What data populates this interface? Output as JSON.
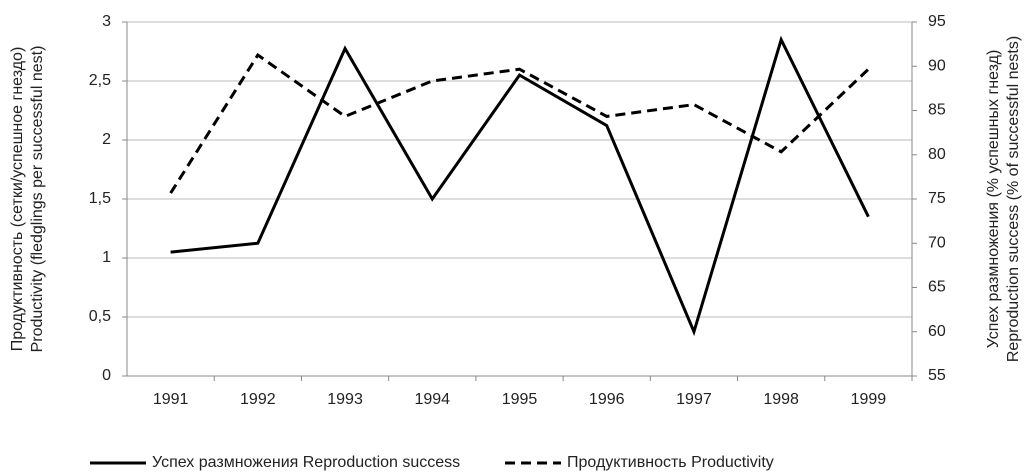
{
  "chart_data": {
    "type": "line",
    "categories": [
      "1991",
      "1992",
      "1993",
      "1994",
      "1995",
      "1996",
      "1997",
      "1998",
      "1999"
    ],
    "ylabel": [
      "Продуктивность (сетки/успешное гнездо)",
      "Productivity (fledglings per successful nest)"
    ],
    "y2label": [
      "Успех размножения (% успешных гнезд)",
      "Reproduction success (% of successful nests)"
    ],
    "ylim": [
      0,
      3
    ],
    "yticks": [
      0,
      {
        "value": 0.5,
        "label": "0,5"
      },
      1,
      {
        "value": 1.5,
        "label": "1,5"
      },
      2,
      {
        "value": 2.5,
        "label": "2,5"
      },
      3
    ],
    "y2lim": [
      55,
      95
    ],
    "y2ticks": [
      55,
      60,
      65,
      70,
      75,
      80,
      85,
      90,
      95
    ],
    "grid": true,
    "legend": "bottom",
    "series": [
      {
        "name": "Успех размножения Reproduction success",
        "color": "#000000",
        "dash": "solid",
        "axis": "y2",
        "values": [
          69,
          70,
          92,
          75,
          89,
          83.3,
          60,
          93,
          73
        ]
      },
      {
        "name": "Продуктивность Productivity",
        "color": "#000000",
        "dash": "dashed",
        "axis": "y",
        "values": [
          1.55,
          2.72,
          2.2,
          2.5,
          2.6,
          2.2,
          2.3,
          1.9,
          2.6
        ]
      }
    ]
  }
}
